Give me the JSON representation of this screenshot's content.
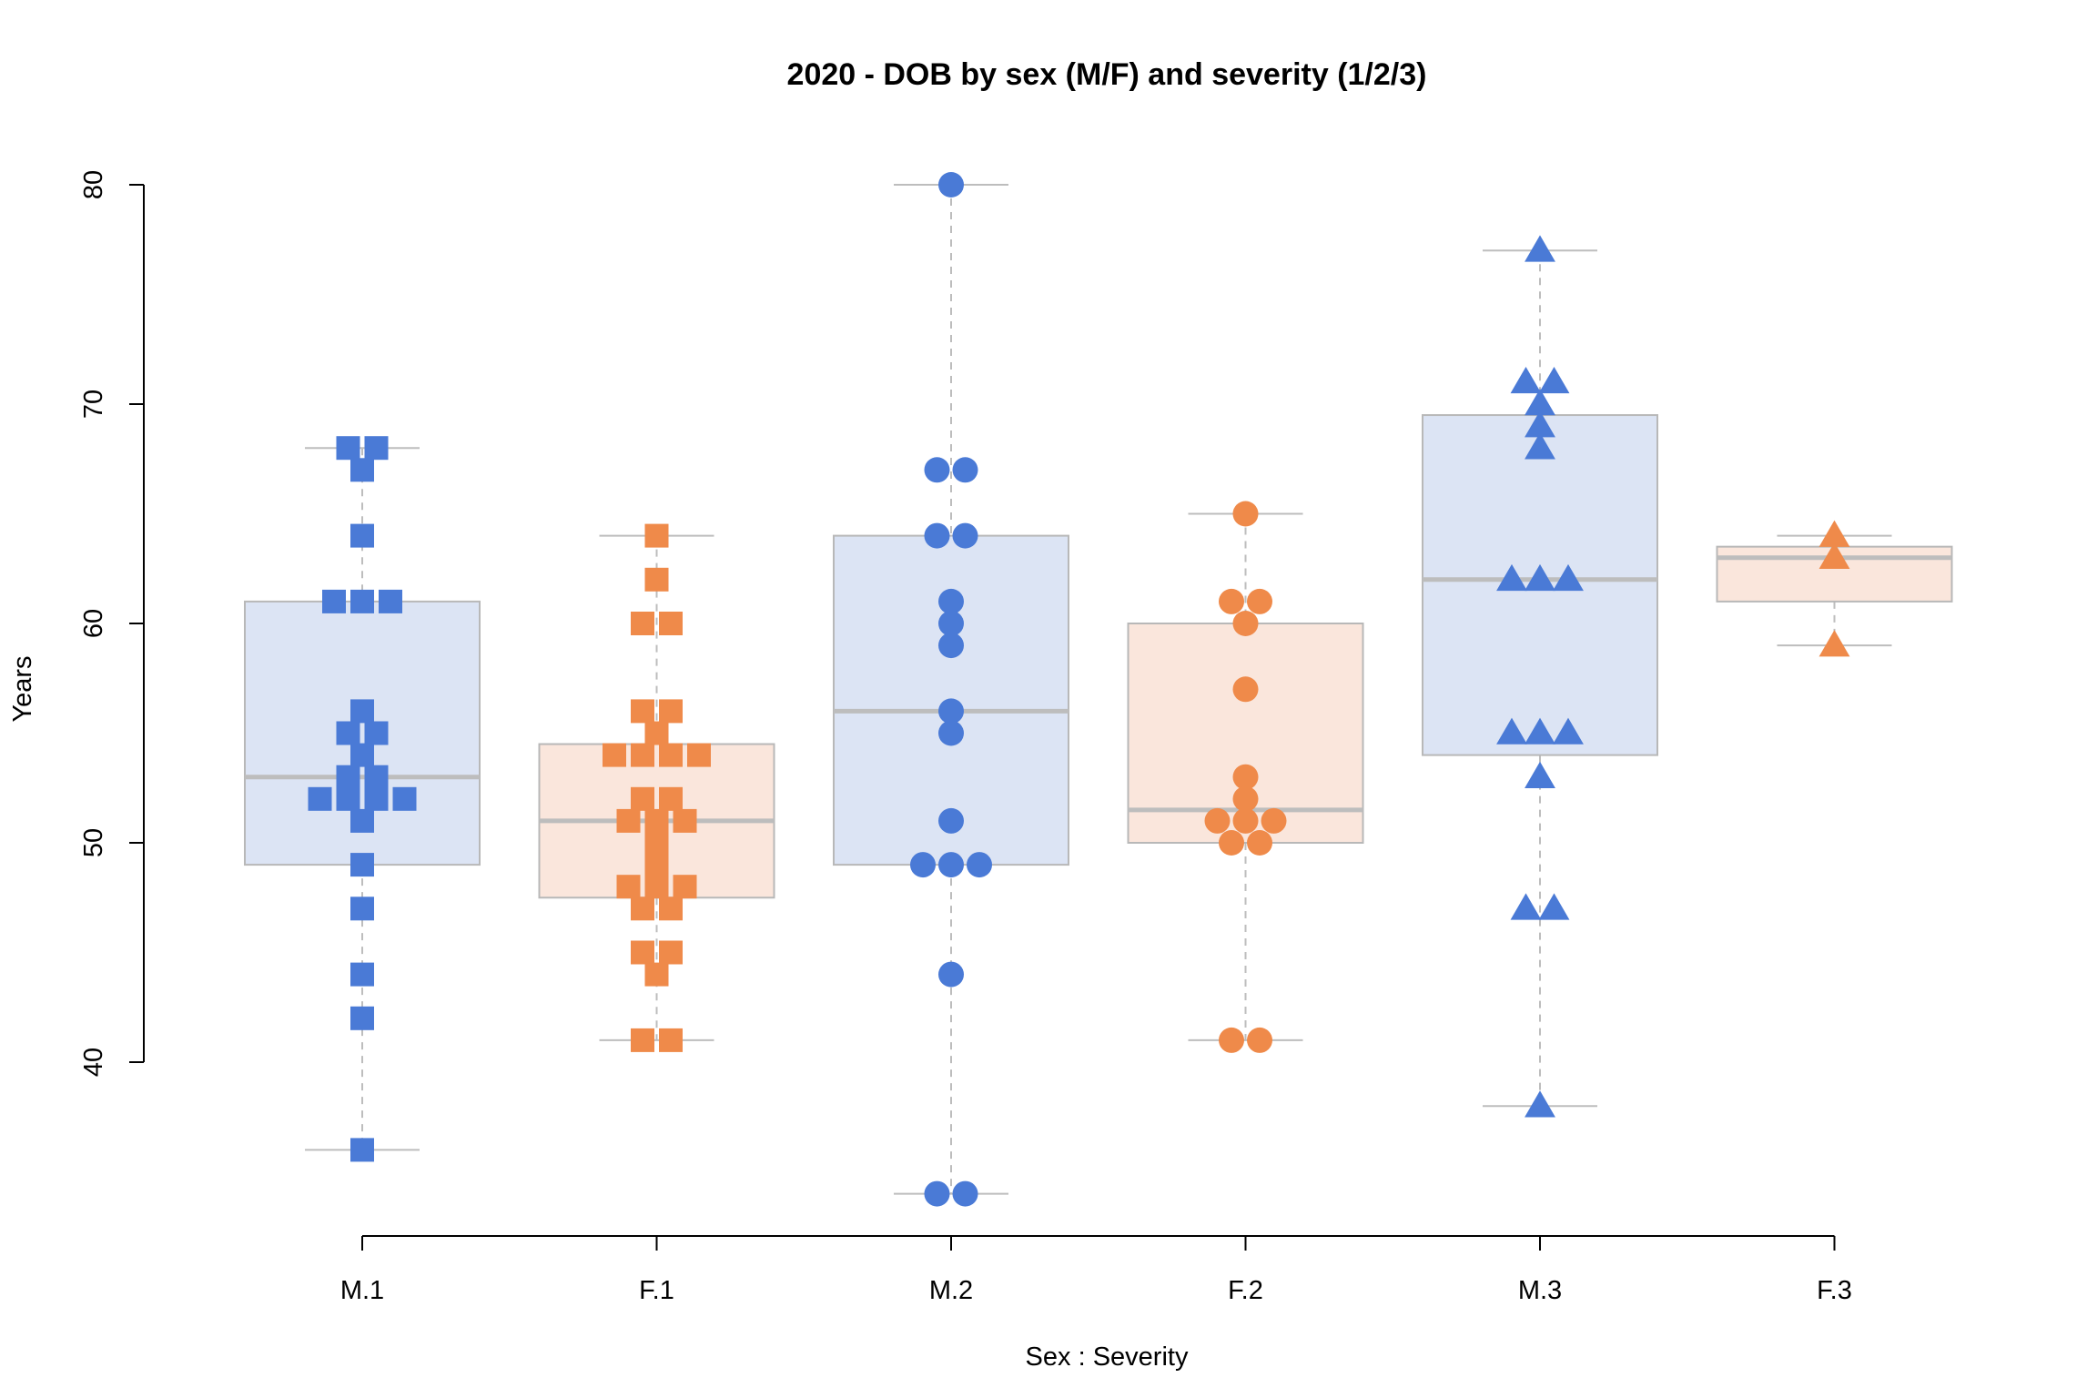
{
  "chart_data": {
    "type": "box",
    "title": "2020 - DOB by sex (M/F) and severity (1/2/3)",
    "xlabel": "Sex : Severity",
    "ylabel": "Years",
    "ylim": [
      33,
      81
    ],
    "yticks": [
      40,
      50,
      60,
      70,
      80
    ],
    "grid": false,
    "categories": [
      "M.1",
      "F.1",
      "M.2",
      "F.2",
      "M.3",
      "F.3"
    ],
    "colors": {
      "M": "#4a7ad6",
      "F": "#ef8a4a",
      "M_box": "#dce4f4",
      "F_box": "#fae6dc",
      "median": "#bdbdbd",
      "whisker": "#bdbdbd"
    },
    "groups": [
      {
        "name": "M.1",
        "sex": "M",
        "marker": "square",
        "whisker_low": 36,
        "q1": 49,
        "median": 53,
        "q3": 61,
        "whisker_high": 68,
        "points": [
          68,
          68,
          67,
          64,
          61,
          61,
          61,
          56,
          55,
          55,
          54,
          53,
          53,
          52,
          52,
          52,
          52,
          51,
          49,
          47,
          44,
          42,
          36
        ]
      },
      {
        "name": "F.1",
        "sex": "F",
        "marker": "square",
        "whisker_low": 41,
        "q1": 47.5,
        "median": 51,
        "q3": 54.5,
        "whisker_high": 64,
        "points": [
          64,
          62,
          60,
          60,
          56,
          56,
          55,
          54,
          54,
          54,
          54,
          52,
          52,
          51,
          51,
          51,
          50,
          49,
          48,
          48,
          48,
          47,
          47,
          45,
          45,
          44,
          41,
          41
        ]
      },
      {
        "name": "M.2",
        "sex": "M",
        "marker": "circle",
        "whisker_low": 34,
        "q1": 49,
        "median": 56,
        "q3": 64,
        "whisker_high": 80,
        "points": [
          80,
          67,
          67,
          64,
          64,
          61,
          60,
          59,
          56,
          55,
          51,
          49,
          49,
          49,
          44,
          34,
          34
        ]
      },
      {
        "name": "F.2",
        "sex": "F",
        "marker": "circle",
        "whisker_low": 41,
        "q1": 50,
        "median": 51.5,
        "q3": 60,
        "whisker_high": 65,
        "points": [
          65,
          61,
          61,
          60,
          57,
          53,
          52,
          51,
          51,
          51,
          50,
          50,
          41,
          41
        ]
      },
      {
        "name": "M.3",
        "sex": "M",
        "marker": "triangle",
        "whisker_low": 38,
        "q1": 54,
        "median": 62,
        "q3": 69.5,
        "whisker_high": 77,
        "points": [
          77,
          71,
          71,
          70,
          69,
          68,
          62,
          62,
          62,
          55,
          55,
          55,
          53,
          47,
          47,
          38
        ]
      },
      {
        "name": "F.3",
        "sex": "F",
        "marker": "triangle",
        "whisker_low": 59,
        "q1": 61,
        "median": 63,
        "q3": 63.5,
        "whisker_high": 64,
        "points": [
          64,
          63,
          59
        ]
      }
    ]
  }
}
